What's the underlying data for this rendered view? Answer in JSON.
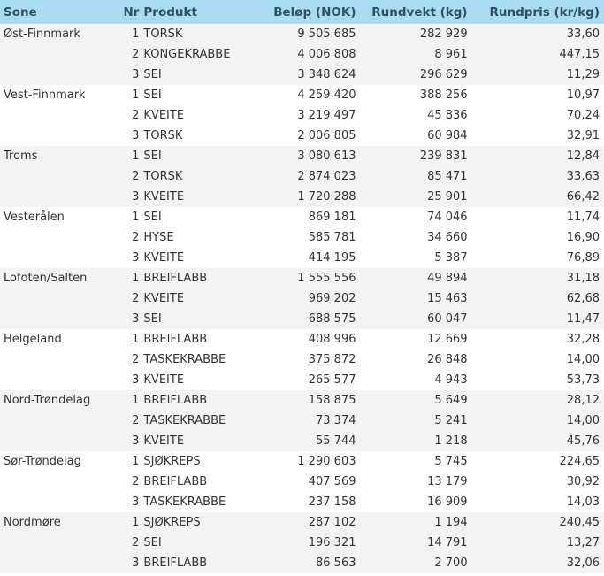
{
  "headers": {
    "sone": "Sone",
    "nr": "Nr",
    "produkt": "Produkt",
    "belop": "Beløp (NOK)",
    "rundvekt": "Rundvekt (kg)",
    "rundpris": "Rundpris (kr/kg)"
  },
  "colors": {
    "header_bg": "#a9dcf3",
    "alt_row": "#f3f3f3"
  },
  "groups": [
    {
      "sone": "Øst-Finnmark",
      "rows": [
        [
          "1",
          "TORSK",
          "9 505 685",
          "282 929",
          "33,60"
        ],
        [
          "2",
          "KONGEKRABBE",
          "4 006 808",
          "8 961",
          "447,15"
        ],
        [
          "3",
          "SEI",
          "3 348 624",
          "296 629",
          "11,29"
        ]
      ]
    },
    {
      "sone": "Vest-Finnmark",
      "rows": [
        [
          "1",
          "SEI",
          "4 259 420",
          "388 256",
          "10,97"
        ],
        [
          "2",
          "KVEITE",
          "3 219 497",
          "45 836",
          "70,24"
        ],
        [
          "3",
          "TORSK",
          "2 006 805",
          "60 984",
          "32,91"
        ]
      ]
    },
    {
      "sone": "Troms",
      "rows": [
        [
          "1",
          "SEI",
          "3 080 613",
          "239 831",
          "12,84"
        ],
        [
          "2",
          "TORSK",
          "2 874 023",
          "85 471",
          "33,63"
        ],
        [
          "3",
          "KVEITE",
          "1 720 288",
          "25 901",
          "66,42"
        ]
      ]
    },
    {
      "sone": "Vesterålen",
      "rows": [
        [
          "1",
          "SEI",
          "869 181",
          "74 046",
          "11,74"
        ],
        [
          "2",
          "HYSE",
          "585 781",
          "34 660",
          "16,90"
        ],
        [
          "3",
          "KVEITE",
          "414 195",
          "5 387",
          "76,89"
        ]
      ]
    },
    {
      "sone": "Lofoten/Salten",
      "rows": [
        [
          "1",
          "BREIFLABB",
          "1 555 556",
          "49 894",
          "31,18"
        ],
        [
          "2",
          "KVEITE",
          "969 202",
          "15 463",
          "62,68"
        ],
        [
          "3",
          "SEI",
          "688 575",
          "60 047",
          "11,47"
        ]
      ]
    },
    {
      "sone": "Helgeland",
      "rows": [
        [
          "1",
          "BREIFLABB",
          "408 996",
          "12 669",
          "32,28"
        ],
        [
          "2",
          "TASKEKRABBE",
          "375 872",
          "26 848",
          "14,00"
        ],
        [
          "3",
          "KVEITE",
          "265 577",
          "4 943",
          "53,73"
        ]
      ]
    },
    {
      "sone": "Nord-Trøndelag",
      "rows": [
        [
          "1",
          "BREIFLABB",
          "158 875",
          "5 649",
          "28,12"
        ],
        [
          "2",
          "TASKEKRABBE",
          "73 374",
          "5 241",
          "14,00"
        ],
        [
          "3",
          "KVEITE",
          "55 744",
          "1 218",
          "45,76"
        ]
      ]
    },
    {
      "sone": "Sør-Trøndelag",
      "rows": [
        [
          "1",
          "SJØKREPS",
          "1 290 603",
          "5 745",
          "224,65"
        ],
        [
          "2",
          "BREIFLABB",
          "407 569",
          "13 179",
          "30,92"
        ],
        [
          "3",
          "TASKEKRABBE",
          "237 158",
          "16 909",
          "14,03"
        ]
      ]
    },
    {
      "sone": "Nordmøre",
      "rows": [
        [
          "1",
          "SJØKREPS",
          "287 102",
          "1 194",
          "240,45"
        ],
        [
          "2",
          "SEI",
          "196 321",
          "14 791",
          "13,27"
        ],
        [
          "3",
          "BREIFLABB",
          "86 563",
          "2 700",
          "32,06"
        ]
      ]
    }
  ]
}
